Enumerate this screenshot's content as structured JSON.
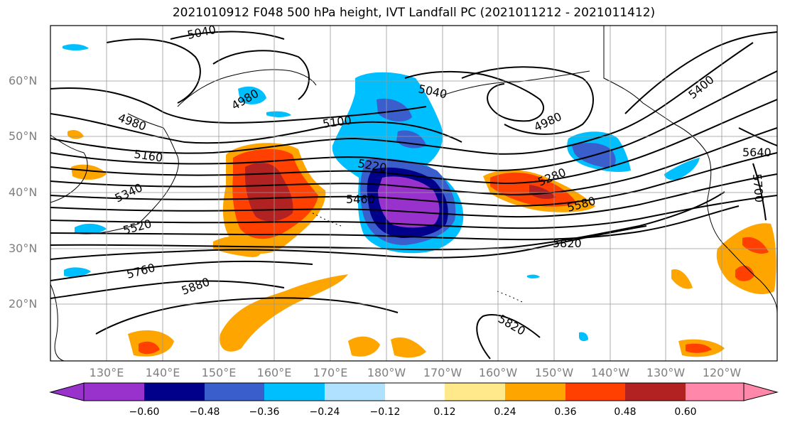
{
  "title": "2021010912 F048 500 hPa height, IVT Landfall PC (2021011212 - 2021011412)",
  "lat_labels": [
    "60°N",
    "50°N",
    "40°N",
    "30°N",
    "20°N"
  ],
  "lon_labels": [
    "130°E",
    "140°E",
    "150°E",
    "160°E",
    "170°E",
    "180°W",
    "170°W",
    "160°W",
    "150°W",
    "140°W",
    "130°W",
    "120°W"
  ],
  "contour_labels": [
    "5040",
    "4980",
    "4980",
    "5100",
    "5160",
    "5040",
    "4980",
    "5220",
    "5340",
    "5460",
    "5400",
    "5520",
    "5280",
    "5580",
    "5640",
    "5700",
    "5820",
    "5760",
    "5880",
    "5820"
  ],
  "colorbar": {
    "ticks": [
      "−0.60",
      "−0.48",
      "−0.36",
      "−0.24",
      "−0.12",
      "0.12",
      "0.24",
      "0.36",
      "0.48",
      "0.60"
    ],
    "colors": [
      "#9932cc",
      "#00008b",
      "#3a5fcd",
      "#00bfff",
      "#b0e2ff",
      "#ffffff",
      "#ffe98a",
      "#ffa500",
      "#ff4000",
      "#b22222",
      "#ff88aa"
    ]
  }
}
